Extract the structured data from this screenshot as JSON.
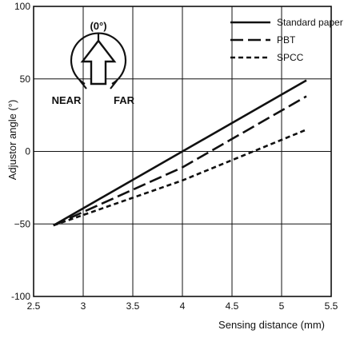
{
  "chart_data": {
    "type": "line",
    "xlabel": "Sensing distance (mm)",
    "ylabel": "Adjustor angle (°)",
    "xlim": [
      2.5,
      5.5
    ],
    "ylim": [
      -100,
      100
    ],
    "x_ticks": [
      "2.5",
      "3",
      "3.5",
      "4",
      "4.5",
      "5",
      "5.5"
    ],
    "y_ticks": [
      "100",
      "50",
      "0",
      "−50",
      "-100"
    ],
    "grid": true,
    "legend_position": "top-right",
    "series": [
      {
        "name": "Standard paper",
        "line_style": "solid",
        "x": [
          2.7,
          4.0,
          5.25
        ],
        "y": [
          -51,
          0,
          49
        ]
      },
      {
        "name": "PBT",
        "line_style": "long-dash",
        "x": [
          2.7,
          4.0,
          5.25
        ],
        "y": [
          -51,
          -11,
          38
        ]
      },
      {
        "name": "SPCC",
        "line_style": "short-dash",
        "x": [
          2.7,
          4.0,
          5.25
        ],
        "y": [
          -51,
          -20,
          15
        ]
      }
    ]
  },
  "dial": {
    "top_label": "(0°)",
    "left_label": "NEAR",
    "right_label": "FAR"
  },
  "colors": {
    "ink": "#111111",
    "background": "#ffffff"
  }
}
